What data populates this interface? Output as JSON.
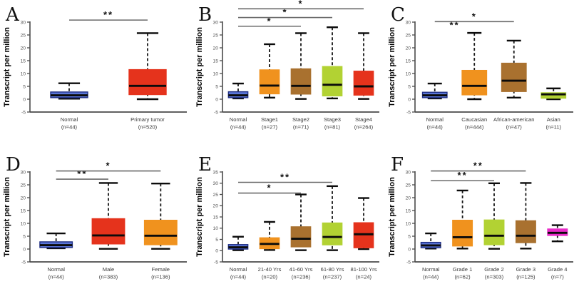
{
  "figure_title": "",
  "ylabel": "Transcript per million",
  "colors": {
    "blue": "#5b76d8",
    "blue_border": "#202f85",
    "orange": "#F0921E",
    "brown": "#A9712F",
    "green": "#B2D233",
    "red": "#E5331C",
    "magenta": "#E82BC7",
    "axis": "#4a4a4a",
    "sig_bar": "#6a6a6a",
    "sig_label": "#111111",
    "tick_label": "#555555",
    "cat_label": "#3b3b3b",
    "box_line": "#0b0b0b"
  },
  "chart_data": [
    {
      "type": "box",
      "panel": "A",
      "ylabel": "Transcript per million",
      "ylim": [
        -5,
        30
      ],
      "ytick_step": 5,
      "categories": [
        {
          "label": "Normal",
          "n_label": "(n=44)",
          "color_key": "blue",
          "low": 0.2,
          "q1": 0.6,
          "median": 1.5,
          "q3": 2.8,
          "high": 6.2
        },
        {
          "label": "Primary tumor",
          "n_label": "(n=520)",
          "color_key": "red",
          "low": 0.0,
          "q1": 1.8,
          "median": 5.2,
          "q3": 11.5,
          "high": 25.7
        }
      ],
      "significance": [
        {
          "from": "Normal",
          "to": "Primary tumor",
          "label": "**",
          "y": 30.8,
          "bar": true
        }
      ]
    },
    {
      "type": "box",
      "panel": "B",
      "ylabel": "Transcript per million",
      "ylim": [
        -5,
        30
      ],
      "ytick_step": 5,
      "categories": [
        {
          "label": "Normal",
          "n_label": "(n=44)",
          "color_key": "blue",
          "low": 0.3,
          "q1": 0.6,
          "median": 1.5,
          "q3": 2.9,
          "high": 6.1
        },
        {
          "label": "Stage1",
          "n_label": "(n=27)",
          "color_key": "orange",
          "low": 0.6,
          "q1": 2.1,
          "median": 5.3,
          "q3": 11.4,
          "high": 21.4
        },
        {
          "label": "Stage2",
          "n_label": "(n=71)",
          "color_key": "brown",
          "low": 0.1,
          "q1": 2.0,
          "median": 5.2,
          "q3": 11.8,
          "high": 25.7
        },
        {
          "label": "Stage3",
          "n_label": "(n=81)",
          "color_key": "green",
          "low": 0.3,
          "q1": 1.3,
          "median": 5.6,
          "q3": 12.7,
          "high": 28.0
        },
        {
          "label": "Stage4",
          "n_label": "(n=264)",
          "color_key": "red",
          "low": 0.1,
          "q1": 1.6,
          "median": 5.0,
          "q3": 10.9,
          "high": 25.7
        }
      ],
      "significance": [
        {
          "from": "Normal",
          "to": "Stage2",
          "label": "*",
          "y": 28.4,
          "bar": true
        },
        {
          "from": "Normal",
          "to": "Stage3",
          "label": "*",
          "y": 31.8,
          "bar": true
        },
        {
          "from": "Normal",
          "to": "Stage4",
          "label": "*",
          "y": 35.2,
          "bar": true
        }
      ]
    },
    {
      "type": "box",
      "panel": "C",
      "ylabel": "Transcript per million",
      "ylim": [
        -5,
        30
      ],
      "ytick_step": 5,
      "categories": [
        {
          "label": "Normal",
          "n_label": "(n=44)",
          "color_key": "blue",
          "low": 0.3,
          "q1": 0.6,
          "median": 1.5,
          "q3": 2.7,
          "high": 6.1
        },
        {
          "label": "Caucasian",
          "n_label": "(n=444)",
          "color_key": "orange",
          "low": 0.0,
          "q1": 1.7,
          "median": 5.2,
          "q3": 11.2,
          "high": 25.8
        },
        {
          "label": "African-american",
          "n_label": "(n=47)",
          "color_key": "brown",
          "low": 0.6,
          "q1": 3.0,
          "median": 7.2,
          "q3": 14.0,
          "high": 22.8
        },
        {
          "label": "Asian",
          "n_label": "(n=11)",
          "color_key": "green",
          "low": 0.0,
          "q1": 0.4,
          "median": 1.9,
          "q3": 2.5,
          "high": 4.2
        }
      ],
      "significance": [
        {
          "from": "Normal",
          "to": "African-american",
          "label": "*",
          "y": 30.2,
          "bar": true
        },
        {
          "from": "Normal",
          "to": "Caucasian",
          "label": "**",
          "y": 26.8,
          "bar": false
        }
      ]
    },
    {
      "type": "box",
      "panel": "D",
      "ylabel": "Transcript per million",
      "ylim": [
        -5,
        30
      ],
      "ytick_step": 5,
      "categories": [
        {
          "label": "Normal",
          "n_label": "(n=44)",
          "color_key": "blue",
          "low": 0.3,
          "q1": 0.6,
          "median": 1.5,
          "q3": 2.8,
          "high": 6.1
        },
        {
          "label": "Male",
          "n_label": "(n=383)",
          "color_key": "red",
          "low": 0.1,
          "q1": 2.0,
          "median": 5.3,
          "q3": 11.8,
          "high": 25.7
        },
        {
          "label": "Female",
          "n_label": "(n=136)",
          "color_key": "orange",
          "low": 0.1,
          "q1": 1.7,
          "median": 5.2,
          "q3": 11.2,
          "high": 25.5
        }
      ],
      "significance": [
        {
          "from": "Normal",
          "to": "Male",
          "label": "**",
          "y": 27.2,
          "bar": true
        },
        {
          "from": "Normal",
          "to": "Female",
          "label": "*",
          "y": 30.4,
          "bar": true
        }
      ]
    },
    {
      "type": "box",
      "panel": "E",
      "ylabel": "Transcript per million",
      "ylim": [
        -5,
        35
      ],
      "ytick_step": 5,
      "categories": [
        {
          "label": "Normal",
          "n_label": "(n=44)",
          "color_key": "blue",
          "low": 0.2,
          "q1": 0.7,
          "median": 1.5,
          "q3": 2.7,
          "high": 6.2
        },
        {
          "label": "21-40 Yrs",
          "n_label": "(n=20)",
          "color_key": "orange",
          "low": 0.3,
          "q1": 0.9,
          "median": 3.0,
          "q3": 5.7,
          "high": 12.8
        },
        {
          "label": "41-60 Yrs",
          "n_label": "(n=236)",
          "color_key": "brown",
          "low": 0.2,
          "q1": 1.7,
          "median": 5.3,
          "q3": 10.6,
          "high": 25.0
        },
        {
          "label": "61-80 Yrs",
          "n_label": "(n=237)",
          "color_key": "green",
          "low": 0.2,
          "q1": 2.6,
          "median": 6.1,
          "q3": 12.3,
          "high": 28.7
        },
        {
          "label": "81-100 Yrs",
          "n_label": "(n=24)",
          "color_key": "red",
          "low": 0.7,
          "q1": 1.3,
          "median": 7.3,
          "q3": 12.4,
          "high": 23.4
        }
      ],
      "significance": [
        {
          "from": "Normal",
          "to": "41-60 Yrs",
          "label": "*",
          "y": 25.6,
          "bar": true
        },
        {
          "from": "Normal",
          "to": "61-80 Yrs",
          "label": "**",
          "y": 30.4,
          "bar": true
        }
      ]
    },
    {
      "type": "box",
      "panel": "F",
      "ylabel": "Transcript per million",
      "ylim": [
        -5,
        30
      ],
      "ytick_step": 5,
      "categories": [
        {
          "label": "Normal",
          "n_label": "(n=44)",
          "color_key": "blue",
          "low": 0.2,
          "q1": 0.5,
          "median": 1.4,
          "q3": 2.6,
          "high": 6.1
        },
        {
          "label": "Grade 1",
          "n_label": "(n=62)",
          "color_key": "orange",
          "low": 0.2,
          "q1": 1.2,
          "median": 4.6,
          "q3": 11.2,
          "high": 22.8
        },
        {
          "label": "Grade 2",
          "n_label": "(n=303)",
          "color_key": "green",
          "low": 0.1,
          "q1": 1.7,
          "median": 5.2,
          "q3": 11.3,
          "high": 25.6
        },
        {
          "label": "Grade 3",
          "n_label": "(n=125)",
          "color_key": "brown",
          "low": 0.2,
          "q1": 2.5,
          "median": 5.2,
          "q3": 11.0,
          "high": 25.7
        },
        {
          "label": "Grade 4",
          "n_label": "(n=7)",
          "color_key": "magenta",
          "low": 3.0,
          "q1": 5.3,
          "median": 6.3,
          "q3": 7.8,
          "high": 9.3
        }
      ],
      "significance": [
        {
          "from": "Normal",
          "to": "Grade 2",
          "label": "**",
          "y": 26.6,
          "bar": true
        },
        {
          "from": "Normal",
          "to": "Grade 3",
          "label": "**",
          "y": 30.4,
          "bar": true
        }
      ]
    }
  ]
}
